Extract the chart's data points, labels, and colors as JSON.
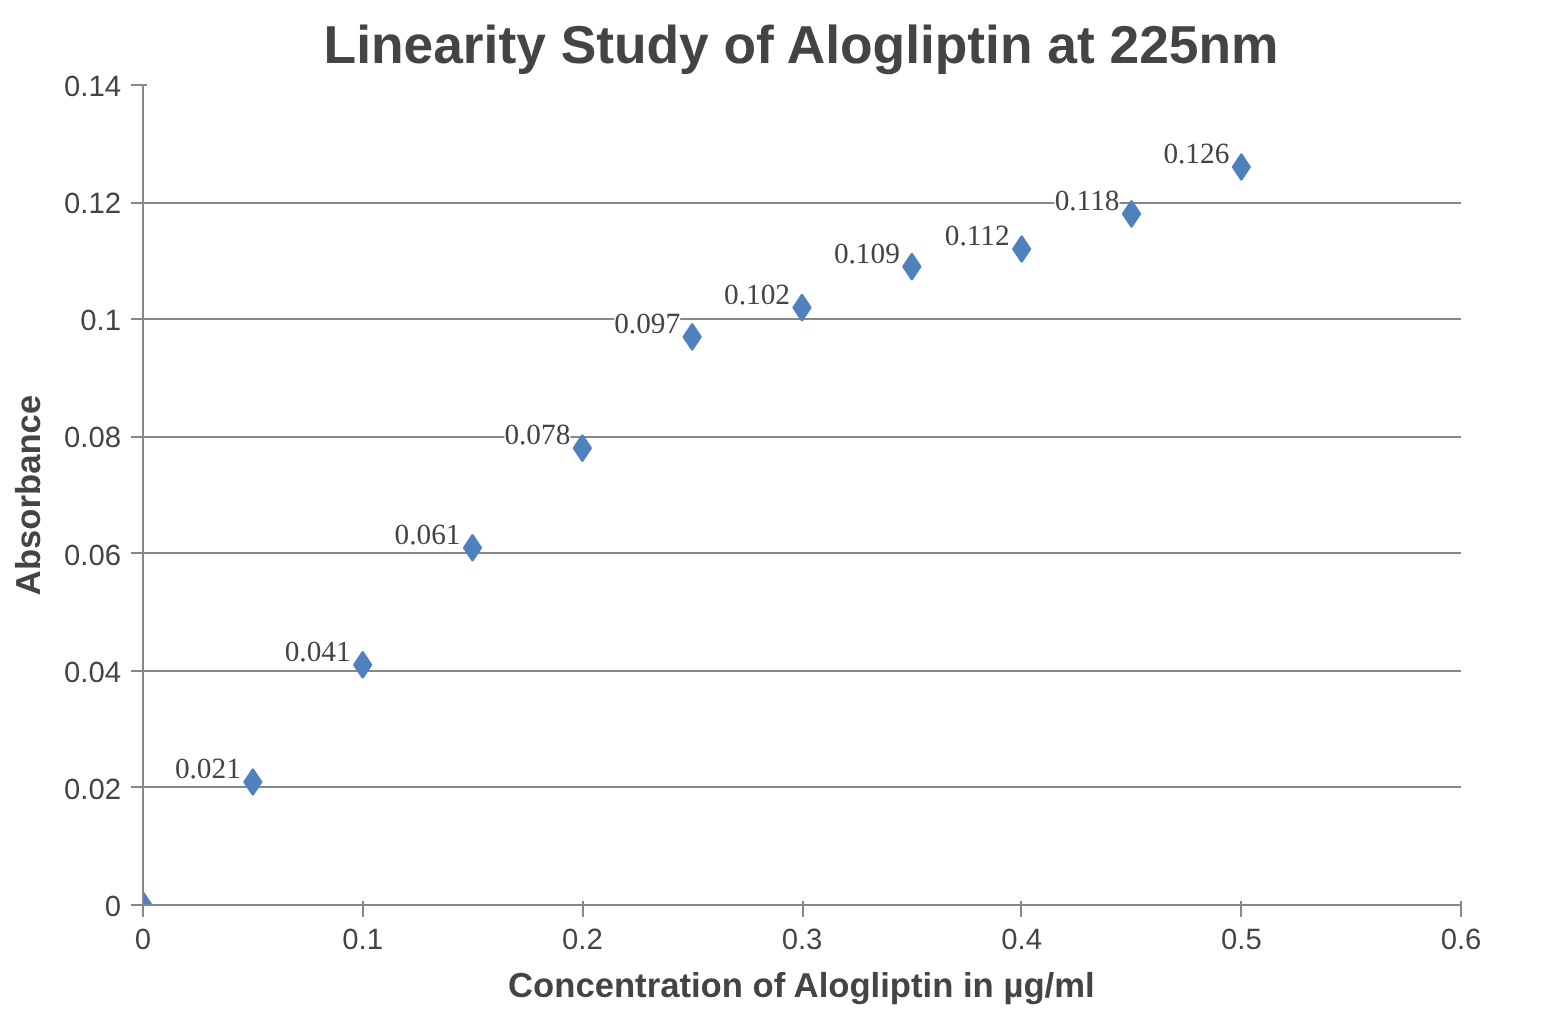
{
  "chart_data": {
    "type": "scatter",
    "title": "Linearity Study of Alogliptin at 225nm",
    "xlabel": "Concentration of Alogliptin in µg/ml",
    "ylabel": "Absorbance",
    "x": [
      0,
      0.05,
      0.1,
      0.15,
      0.2,
      0.25,
      0.3,
      0.35,
      0.4,
      0.45,
      0.5
    ],
    "series": [
      {
        "color": "#4f81bd",
        "values": [
          0,
          0.021,
          0.041,
          0.061,
          0.078,
          0.097,
          0.102,
          0.109,
          0.112,
          0.118,
          0.126
        ],
        "value_labels": [
          null,
          "0.021",
          "0.041",
          "0.061",
          "0.078",
          "0.097",
          "0.102",
          "0.109",
          "0.112",
          "0.118",
          "0.126"
        ]
      }
    ],
    "xlim": [
      0,
      0.6
    ],
    "xticks": [
      0,
      0.1,
      0.2,
      0.3,
      0.4,
      0.5,
      0.6
    ],
    "ylim": [
      0,
      0.14
    ],
    "yticks": [
      0,
      0.02,
      0.04,
      0.06,
      0.08,
      0.1,
      0.12,
      0.14
    ],
    "grid": "y",
    "marker": "diamond"
  }
}
